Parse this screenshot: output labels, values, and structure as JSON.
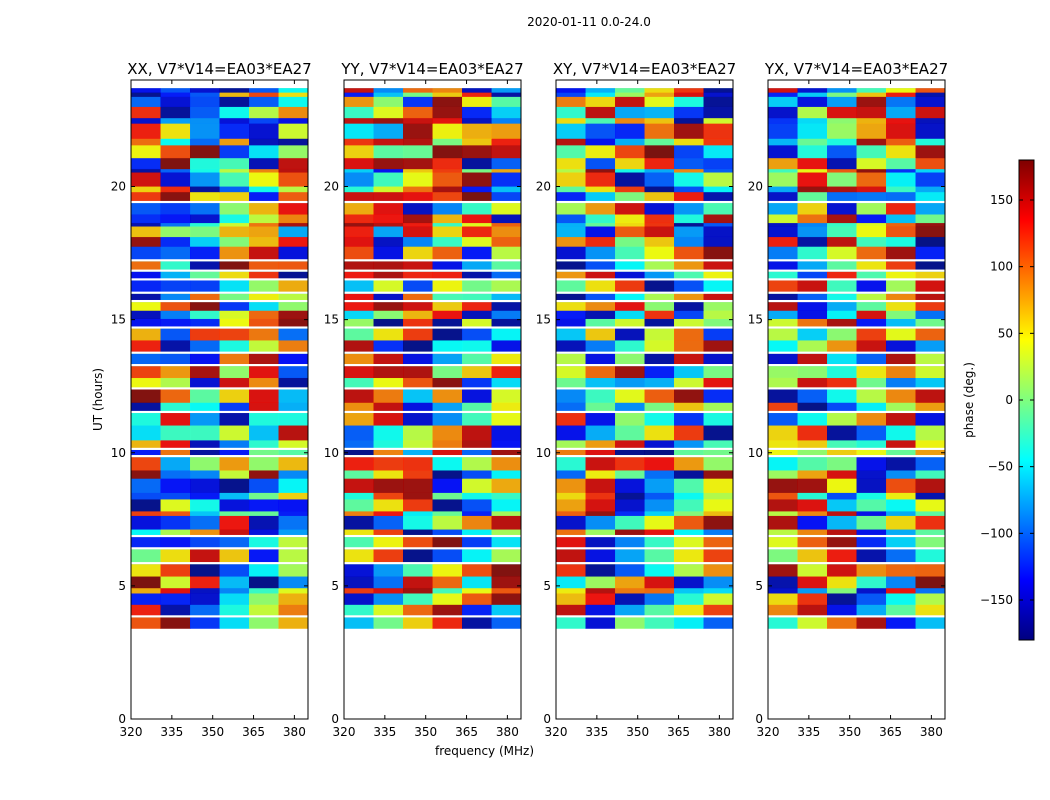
{
  "suptitle": "2020-01-11 0.0-24.0",
  "chart_data": [
    {
      "type": "heatmap",
      "title": "XX, V7*V14=EA03*EA27",
      "xlabel": "",
      "ylabel": "UT (hours)",
      "xlim": [
        320,
        385
      ],
      "ylim": [
        0,
        24
      ],
      "xticks": [
        320,
        335,
        350,
        365,
        380
      ],
      "yticks": [
        0,
        5,
        10,
        15,
        20
      ],
      "data_rows_ut": [
        3.4,
        23.7
      ]
    },
    {
      "type": "heatmap",
      "title": "YY, V7*V14=EA03*EA27",
      "xlabel": "frequency (MHz)",
      "ylabel": "",
      "xlim": [
        320,
        385
      ],
      "ylim": [
        0,
        24
      ],
      "xticks": [
        320,
        335,
        350,
        365,
        380
      ],
      "yticks": [
        0,
        5,
        10,
        15,
        20
      ],
      "data_rows_ut": [
        3.4,
        23.7
      ]
    },
    {
      "type": "heatmap",
      "title": "XY, V7*V14=EA03*EA27",
      "xlabel": "",
      "ylabel": "",
      "xlim": [
        320,
        385
      ],
      "ylim": [
        0,
        24
      ],
      "xticks": [
        320,
        335,
        350,
        365,
        380
      ],
      "yticks": [
        0,
        5,
        10,
        15,
        20
      ],
      "data_rows_ut": [
        3.4,
        23.7
      ]
    },
    {
      "type": "heatmap",
      "title": "YX, V7*V14=EA03*EA27",
      "xlabel": "",
      "ylabel": "",
      "xlim": [
        320,
        385
      ],
      "ylim": [
        0,
        24
      ],
      "xticks": [
        320,
        335,
        350,
        365,
        380
      ],
      "yticks": [
        0,
        5,
        10,
        15,
        20
      ],
      "data_rows_ut": [
        3.4,
        23.7
      ]
    }
  ],
  "colorbar": {
    "label": "phase (deg.)",
    "range": [
      -180,
      180
    ],
    "ticks": [
      -150,
      -100,
      -50,
      0,
      50,
      100,
      150
    ],
    "tick_labels": [
      "−150",
      "−100",
      "−50",
      "0",
      "50",
      "100",
      "150"
    ],
    "colormap": [
      "#00007f",
      "#0000ff",
      "#007fff",
      "#00ffff",
      "#7fff7f",
      "#ffff00",
      "#ff7f00",
      "#ff0000",
      "#7f0000"
    ]
  }
}
